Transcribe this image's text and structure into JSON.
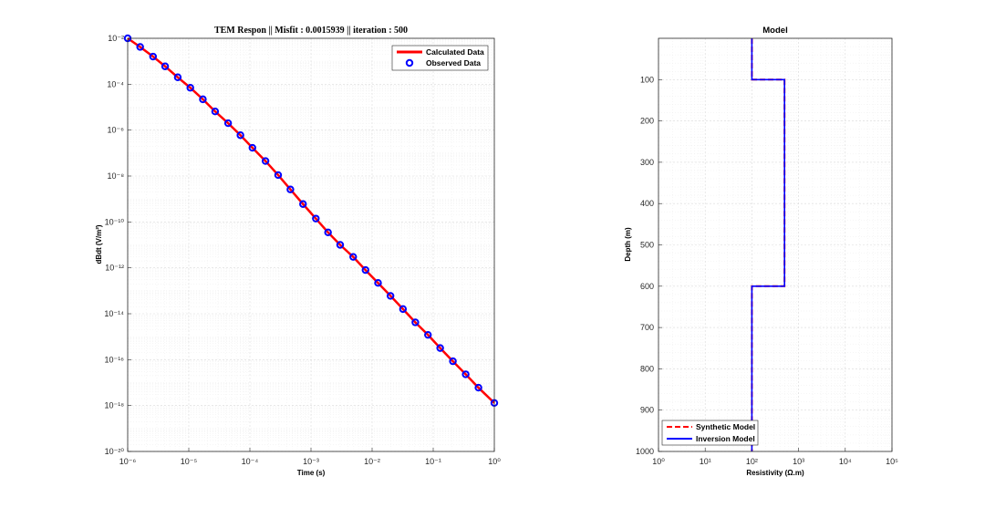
{
  "chart_data": [
    {
      "type": "line",
      "title": "TEM Respon  || Misfit : 0.0015939 || iteration : 500",
      "xlabel": "Time (s)",
      "ylabel": "dBdt (V/m²)",
      "xscale": "log",
      "yscale": "log",
      "xlim": [
        1e-06,
        1
      ],
      "ylim": [
        1e-20,
        0.01
      ],
      "grid": true,
      "minor_grid": true,
      "legend_location": "top-right",
      "x_tick_labels": [
        "10⁻⁶",
        "10⁻⁵",
        "10⁻⁴",
        "10⁻³",
        "10⁻²",
        "10⁻¹",
        "10⁰"
      ],
      "y_tick_labels": [
        "10⁻²⁰",
        "10⁻¹⁸",
        "10⁻¹⁶",
        "10⁻¹⁴",
        "10⁻¹²",
        "10⁻¹⁰",
        "10⁻⁸",
        "10⁻⁶",
        "10⁻⁴",
        "10⁻²"
      ],
      "x": [
        1e-06,
        1.6e-06,
        2.6e-06,
        4.1e-06,
        6.6e-06,
        1.06e-05,
        1.7e-05,
        2.7e-05,
        4.4e-05,
        7e-05,
        0.00011,
        0.00018,
        0.00029,
        0.00046,
        0.00074,
        0.0012,
        0.0019,
        0.003,
        0.0049,
        0.0078,
        0.0125,
        0.02,
        0.032,
        0.051,
        0.082,
        0.13,
        0.21,
        0.34,
        0.55,
        1.0
      ],
      "series": [
        {
          "name": "Calculated Data",
          "style": "solid-line",
          "color": "#ff0000",
          "values": [
            0.01,
            0.0042,
            0.0016,
            0.0006,
            0.0002,
            7e-05,
            2.2e-05,
            6.5e-06,
            2e-06,
            6e-07,
            1.7e-07,
            4.5e-08,
            1.1e-08,
            2.6e-09,
            6e-10,
            1.4e-10,
            3.5e-11,
            1e-11,
            3e-12,
            8e-13,
            2.2e-13,
            6e-14,
            1.6e-14,
            4.2e-15,
            1.2e-15,
            3.2e-16,
            8.5e-17,
            2.3e-17,
            6e-18,
            1.3e-18
          ]
        },
        {
          "name": "Observed Data",
          "style": "circle-markers",
          "color": "#0000ff",
          "values": [
            0.01,
            0.0042,
            0.0016,
            0.0006,
            0.0002,
            7e-05,
            2.2e-05,
            6.5e-06,
            2e-06,
            6e-07,
            1.7e-07,
            4.5e-08,
            1.1e-08,
            2.6e-09,
            6e-10,
            1.4e-10,
            3.5e-11,
            1e-11,
            3e-12,
            8e-13,
            2.2e-13,
            6e-14,
            1.6e-14,
            4.2e-15,
            1.2e-15,
            3.2e-16,
            8.5e-17,
            2.3e-17,
            6e-18,
            1.3e-18
          ]
        }
      ]
    },
    {
      "type": "line",
      "title": "Model",
      "xlabel": "Resistivity (Ω.m)",
      "ylabel": "Depth (m)",
      "xscale": "log",
      "yscale": "linear",
      "y_reversed": true,
      "xlim": [
        1,
        100000
      ],
      "ylim": [
        0,
        1000
      ],
      "grid": true,
      "minor_grid": true,
      "legend_location": "bottom-left",
      "x_tick_labels": [
        "10⁰",
        "10¹",
        "10²",
        "10³",
        "10⁴",
        "10⁵"
      ],
      "y_ticks": [
        100,
        200,
        300,
        400,
        500,
        600,
        700,
        800,
        900,
        1000
      ],
      "series": [
        {
          "name": "Synthetic Model",
          "style": "dashed-line",
          "color": "#ff0000",
          "resistivity": [
            100,
            100,
            500,
            500,
            100,
            100
          ],
          "depth": [
            0,
            100,
            100,
            600,
            600,
            1000
          ]
        },
        {
          "name": "Inversion Model",
          "style": "solid-line",
          "color": "#0000ff",
          "resistivity": [
            100,
            100,
            500,
            500,
            100,
            100
          ],
          "depth": [
            0,
            100,
            100,
            600,
            600,
            1000
          ]
        }
      ]
    }
  ]
}
